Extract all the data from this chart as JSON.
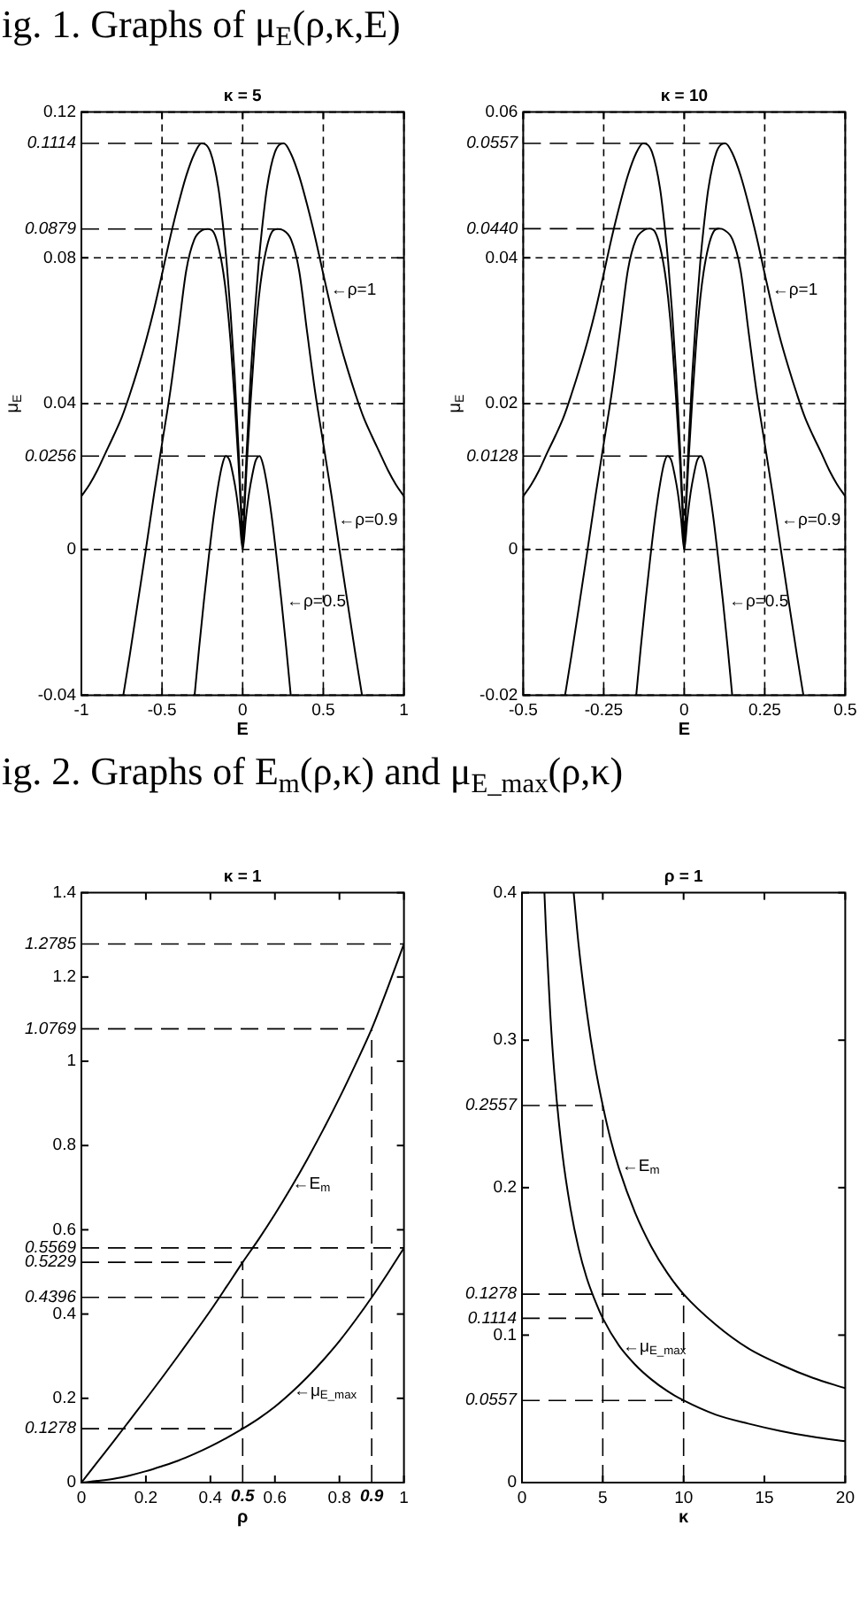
{
  "chart_data": [
    {
      "type": "line",
      "title": "κ = 5",
      "xlabel": "E",
      "ylabel": "μ$_{E}$",
      "xlim": [
        -1,
        1
      ],
      "xticks": [
        -1,
        -0.5,
        0,
        0.5,
        1
      ],
      "ylim": [
        -0.04,
        0.12
      ],
      "yticks": [
        -0.04,
        0,
        0.04,
        0.08,
        0.12
      ],
      "grid": true,
      "series": [
        {
          "color": "#000000",
          "x": [
            -1,
            -0.95,
            -0.9,
            -0.85,
            -0.8,
            -0.75,
            -0.7,
            -0.65,
            -0.6,
            -0.55,
            -0.5,
            -0.45,
            -0.4,
            -0.35,
            -0.3,
            -0.2557,
            -0.2,
            -0.15,
            -0.12,
            -0.1,
            -0.075,
            -0.05,
            -0.025,
            -0.01,
            0,
            0.01,
            0.025,
            0.05,
            0.075,
            0.1,
            0.12,
            0.15,
            0.2,
            0.2557,
            0.3,
            0.35,
            0.4,
            0.45,
            0.5,
            0.55,
            0.6,
            0.65,
            0.7,
            0.75,
            0.8,
            0.85,
            0.9,
            0.95,
            1
          ],
          "values": [
            0.0146,
            0.0178,
            0.0218,
            0.0265,
            0.0312,
            0.0362,
            0.0425,
            0.0495,
            0.0572,
            0.0658,
            0.0755,
            0.0855,
            0.0945,
            0.1025,
            0.1085,
            0.1114,
            0.109,
            0.099,
            0.088,
            0.079,
            0.065,
            0.048,
            0.027,
            0.012,
            0,
            0.012,
            0.027,
            0.048,
            0.065,
            0.079,
            0.088,
            0.099,
            0.109,
            0.1114,
            0.1085,
            0.1025,
            0.0945,
            0.0855,
            0.0755,
            0.0658,
            0.0572,
            0.0495,
            0.0425,
            0.0362,
            0.0312,
            0.0265,
            0.0218,
            0.0178,
            0.0146
          ]
        },
        {
          "color": "#000000",
          "x": [
            -0.74,
            -0.7,
            -0.65,
            -0.6,
            -0.55,
            -0.5,
            -0.45,
            -0.4,
            -0.35,
            -0.3,
            -0.25,
            -0.2154,
            -0.18,
            -0.15,
            -0.12,
            -0.1,
            -0.075,
            -0.05,
            -0.025,
            -0.01,
            0,
            0.01,
            0.025,
            0.05,
            0.075,
            0.1,
            0.12,
            0.15,
            0.18,
            0.2154,
            0.25,
            0.3,
            0.35,
            0.4,
            0.45,
            0.5,
            0.55,
            0.6,
            0.65,
            0.7,
            0.74
          ],
          "values": [
            -0.04,
            -0.029,
            -0.0145,
            0,
            0.015,
            0.029,
            0.043,
            0.0595,
            0.0765,
            0.085,
            0.0876,
            0.0879,
            0.087,
            0.083,
            0.076,
            0.069,
            0.057,
            0.041,
            0.023,
            0.01,
            0,
            0.01,
            0.023,
            0.041,
            0.057,
            0.069,
            0.076,
            0.083,
            0.087,
            0.0879,
            0.0876,
            0.085,
            0.0765,
            0.0595,
            0.043,
            0.029,
            0.015,
            0,
            -0.0145,
            -0.029,
            -0.04
          ]
        },
        {
          "color": "#000000",
          "x": [
            -0.298,
            -0.27,
            -0.24,
            -0.21,
            -0.18,
            -0.15,
            -0.125,
            -0.1046,
            -0.08,
            -0.06,
            -0.04,
            -0.02,
            0,
            0.02,
            0.04,
            0.06,
            0.08,
            0.1046,
            0.125,
            0.15,
            0.18,
            0.21,
            0.24,
            0.27,
            0.298
          ],
          "values": [
            -0.04,
            -0.027,
            -0.014,
            -0.002,
            0.009,
            0.018,
            0.0235,
            0.0256,
            0.0243,
            0.0205,
            0.0155,
            0.0085,
            0,
            0.0085,
            0.0155,
            0.0205,
            0.0243,
            0.0256,
            0.0235,
            0.018,
            0.009,
            -0.002,
            -0.014,
            -0.027,
            -0.04
          ]
        }
      ],
      "ref_lines": [
        {
          "axis": "y",
          "value": 0.1114,
          "label": "0.1114",
          "line_style": "dashed"
        },
        {
          "axis": "y",
          "value": 0.0879,
          "label": "0.0879",
          "line_style": "dashed"
        },
        {
          "axis": "y",
          "value": 0.0256,
          "label": "0.0256",
          "line_style": "dashed"
        }
      ],
      "annotations": [
        "ig. 1. Graphs of μ$_{E}$(ρ,κ,E)",
        {
          "text": "←ρ=1",
          "x": 0.524,
          "y": 0.0712
        },
        {
          "text": "←ρ=0.9",
          "x": 0.57,
          "y": 0.0078
        },
        {
          "text": "←ρ=0.5",
          "x": 0.25,
          "y": -0.0142
        }
      ]
    },
    {
      "type": "line",
      "title": "κ = 10",
      "xlabel": "E",
      "ylabel": "μ$_{E}$",
      "xlim": [
        -0.5,
        0.5
      ],
      "xticks": [
        -0.5,
        -0.25,
        0,
        0.25,
        0.5
      ],
      "ylim": [
        -0.02,
        0.06
      ],
      "yticks": [
        -0.02,
        0,
        0.02,
        0.04,
        0.06
      ],
      "grid": true,
      "series": [
        {
          "color": "#000000",
          "x": [
            -0.5,
            -0.475,
            -0.45,
            -0.425,
            -0.4,
            -0.375,
            -0.35,
            -0.325,
            -0.3,
            -0.275,
            -0.25,
            -0.225,
            -0.2,
            -0.175,
            -0.15,
            -0.1278,
            -0.1,
            -0.075,
            -0.06,
            -0.05,
            -0.0375,
            -0.025,
            -0.0125,
            -0.005,
            0,
            0.005,
            0.0125,
            0.025,
            0.0375,
            0.05,
            0.06,
            0.075,
            0.1,
            0.1278,
            0.15,
            0.175,
            0.2,
            0.225,
            0.25,
            0.275,
            0.3,
            0.325,
            0.35,
            0.375,
            0.4,
            0.425,
            0.45,
            0.475,
            0.5
          ],
          "values": [
            0.0073,
            0.0089,
            0.0109,
            0.0133,
            0.0156,
            0.0181,
            0.0213,
            0.0248,
            0.0286,
            0.0329,
            0.0378,
            0.0428,
            0.0473,
            0.0513,
            0.0543,
            0.0557,
            0.0545,
            0.0495,
            0.044,
            0.0395,
            0.0325,
            0.024,
            0.0135,
            0.006,
            0,
            0.006,
            0.0135,
            0.024,
            0.0325,
            0.0395,
            0.044,
            0.0495,
            0.0545,
            0.0557,
            0.0543,
            0.0513,
            0.0473,
            0.0428,
            0.0378,
            0.0329,
            0.0286,
            0.0248,
            0.0213,
            0.0181,
            0.0156,
            0.0133,
            0.0109,
            0.0089,
            0.0073
          ]
        },
        {
          "color": "#000000",
          "x": [
            -0.37,
            -0.35,
            -0.325,
            -0.3,
            -0.275,
            -0.25,
            -0.225,
            -0.2,
            -0.175,
            -0.15,
            -0.125,
            -0.1077,
            -0.09,
            -0.075,
            -0.06,
            -0.05,
            -0.0375,
            -0.025,
            -0.0125,
            -0.005,
            0,
            0.005,
            0.0125,
            0.025,
            0.0375,
            0.05,
            0.06,
            0.075,
            0.09,
            0.1077,
            0.125,
            0.15,
            0.175,
            0.2,
            0.225,
            0.25,
            0.275,
            0.3,
            0.325,
            0.35,
            0.37
          ],
          "values": [
            -0.02,
            -0.0145,
            -0.0073,
            0,
            0.0075,
            0.0145,
            0.0215,
            0.0298,
            0.0383,
            0.0425,
            0.0438,
            0.044,
            0.0435,
            0.0415,
            0.038,
            0.0345,
            0.0285,
            0.0205,
            0.0115,
            0.005,
            0,
            0.005,
            0.0115,
            0.0205,
            0.0285,
            0.0345,
            0.038,
            0.0415,
            0.0435,
            0.044,
            0.0438,
            0.0425,
            0.0383,
            0.0298,
            0.0215,
            0.0145,
            0.0075,
            0,
            -0.0073,
            -0.0145,
            -0.02
          ]
        },
        {
          "color": "#000000",
          "x": [
            -0.149,
            -0.135,
            -0.12,
            -0.105,
            -0.09,
            -0.075,
            -0.0625,
            -0.0523,
            -0.04,
            -0.03,
            -0.02,
            -0.01,
            0,
            0.01,
            0.02,
            0.03,
            0.04,
            0.0523,
            0.0625,
            0.075,
            0.09,
            0.105,
            0.12,
            0.135,
            0.149
          ],
          "values": [
            -0.02,
            -0.0135,
            -0.007,
            -0.001,
            0.0045,
            0.009,
            0.0118,
            0.0128,
            0.0122,
            0.0103,
            0.0078,
            0.0043,
            0,
            0.0043,
            0.0078,
            0.0103,
            0.0122,
            0.0128,
            0.0118,
            0.009,
            0.0045,
            -0.001,
            -0.007,
            -0.0135,
            -0.02
          ]
        }
      ],
      "ref_lines": [
        {
          "axis": "y",
          "value": 0.0557,
          "label": "0.0557",
          "line_style": "dashed"
        },
        {
          "axis": "y",
          "value": 0.044,
          "label": "0.0440",
          "line_style": "dashed"
        },
        {
          "axis": "y",
          "value": 0.0128,
          "label": "0.0128",
          "line_style": "dashed"
        }
      ],
      "annotations": [
        {
          "text": "←ρ=1",
          "x": 0.262,
          "y": 0.0356
        },
        {
          "text": "←ρ=0.9",
          "x": 0.29,
          "y": 0.0039
        },
        {
          "text": "←ρ=0.5",
          "x": 0.128,
          "y": -0.0071
        }
      ]
    },
    {
      "type": "line",
      "title": "κ = 1",
      "xlabel": "ρ",
      "xlim": [
        0,
        1
      ],
      "xticks": [
        0,
        0.2,
        0.4,
        0.6,
        0.8,
        1
      ],
      "ylim": [
        0,
        1.4
      ],
      "yticks": [
        0,
        0.2,
        0.4,
        0.6,
        0.8,
        1,
        1.2,
        1.4
      ],
      "series": [
        {
          "color": "#000000",
          "x": [
            0,
            0.05,
            0.1,
            0.15,
            0.2,
            0.25,
            0.3,
            0.35,
            0.4,
            0.45,
            0.5,
            0.55,
            0.6,
            0.65,
            0.7,
            0.75,
            0.8,
            0.85,
            0.9,
            0.95,
            1
          ],
          "values": [
            0,
            0.049,
            0.098,
            0.148,
            0.198,
            0.249,
            0.301,
            0.354,
            0.408,
            0.465,
            0.5229,
            0.578,
            0.637,
            0.7,
            0.767,
            0.838,
            0.913,
            0.993,
            1.0769,
            1.175,
            1.2785
          ]
        },
        {
          "color": "#000000",
          "x": [
            0,
            0.05,
            0.1,
            0.15,
            0.2,
            0.25,
            0.3,
            0.35,
            0.4,
            0.45,
            0.5,
            0.55,
            0.6,
            0.65,
            0.7,
            0.75,
            0.8,
            0.85,
            0.9,
            0.95,
            1
          ],
          "values": [
            0,
            0.004,
            0.009,
            0.017,
            0.027,
            0.039,
            0.052,
            0.068,
            0.086,
            0.106,
            0.1278,
            0.152,
            0.18,
            0.213,
            0.25,
            0.291,
            0.336,
            0.386,
            0.4396,
            0.497,
            0.5569
          ]
        }
      ],
      "ref_lines": [
        {
          "axis": "y",
          "value": 1.2785,
          "label": "1.2785",
          "line_style": "dashed"
        },
        {
          "axis": "y",
          "value": 1.0769,
          "label": "1.0769",
          "line_style": "dashed"
        },
        {
          "axis": "y",
          "value": 0.5569,
          "label": "0.5569",
          "line_style": "dashed"
        },
        {
          "axis": "y",
          "value": 0.5229,
          "label": "0.5229",
          "line_style": "dashed"
        },
        {
          "axis": "y",
          "value": 0.4396,
          "label": "0.4396",
          "line_style": "dashed"
        },
        {
          "axis": "y",
          "value": 0.1278,
          "label": "0.1278",
          "line_style": "dashed"
        },
        {
          "axis": "x",
          "value": 0.5,
          "label": "0.5",
          "line_style": "dashed"
        },
        {
          "axis": "x",
          "value": 0.9,
          "label": "0.9",
          "line_style": "dashed"
        }
      ],
      "annotations": [
        "ig. 2. Graphs of E$_{m}$(ρ,κ) and μ$_{E_max}$(ρ,κ)",
        {
          "text": "←E$_{m}$",
          "x": 0.643,
          "y": 0.706
        },
        {
          "text": "←μ$_{E_max}$",
          "x": 0.647,
          "y": 0.218
        }
      ]
    },
    {
      "type": "line",
      "title": "ρ = 1",
      "xlabel": "κ",
      "xlim": [
        0,
        20
      ],
      "xticks": [
        0,
        5,
        10,
        15,
        20
      ],
      "ylim": [
        0,
        0.4
      ],
      "yticks": [
        0,
        0.1,
        0.2,
        0.3,
        0.4
      ],
      "series": [
        {
          "color": "#000000",
          "x": [
            3.2,
            3.5,
            4,
            4.5,
            5,
            5.5,
            6,
            7,
            8,
            9,
            10,
            12,
            14,
            16,
            18,
            20
          ],
          "values": [
            0.4,
            0.365,
            0.32,
            0.284,
            0.2557,
            0.232,
            0.213,
            0.183,
            0.16,
            0.142,
            0.1278,
            0.107,
            0.091,
            0.08,
            0.071,
            0.064
          ]
        },
        {
          "color": "#000000",
          "x": [
            1.39,
            1.5,
            1.75,
            2,
            2.5,
            3,
            3.5,
            4,
            4.5,
            5,
            6,
            7,
            8,
            9,
            10,
            12,
            14,
            16,
            18,
            20
          ],
          "values": [
            0.4,
            0.371,
            0.318,
            0.278,
            0.223,
            0.186,
            0.159,
            0.139,
            0.124,
            0.1114,
            0.093,
            0.08,
            0.07,
            0.062,
            0.0557,
            0.046,
            0.04,
            0.035,
            0.031,
            0.028
          ]
        }
      ],
      "ref_lines": [
        {
          "axis": "y",
          "value": 0.2557,
          "label": "0.2557",
          "line_style": "dashed"
        },
        {
          "axis": "y",
          "value": 0.1278,
          "label": "0.1278",
          "line_style": "dashed"
        },
        {
          "axis": "y",
          "value": 0.1114,
          "label": "0.1114",
          "line_style": "dashed"
        },
        {
          "axis": "y",
          "value": 0.0557,
          "label": "0.0557",
          "line_style": "dashed"
        },
        {
          "axis": "x",
          "value": 5,
          "line_style": "dashed"
        },
        {
          "axis": "x",
          "value": 10,
          "line_style": "dashed"
        }
      ],
      "annotations": [
        {
          "text": "←E$_{m}$",
          "x": 5.95,
          "y": 0.2137
        },
        {
          "text": "←μ$_{E_max}$",
          "x": 6.02,
          "y": 0.0916
        }
      ]
    }
  ]
}
